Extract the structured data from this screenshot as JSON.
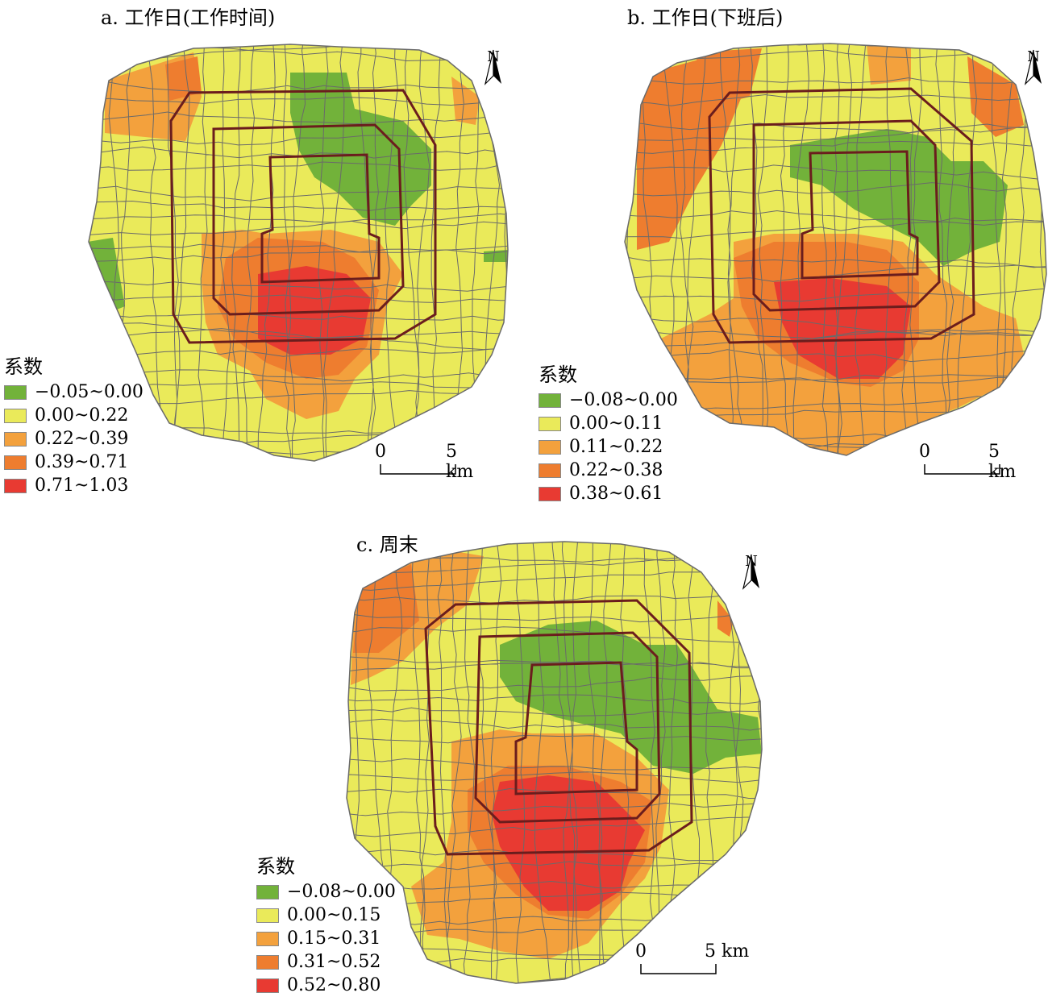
{
  "colors": {
    "green": "#72b23a",
    "yellow": "#eaea5a",
    "light_orange": "#f3a13d",
    "orange": "#ee7d2f",
    "red": "#e83a32",
    "grid_line": "#6a6a6a",
    "ring_road": "#6b1d1d"
  },
  "panels": [
    {
      "title": "a. 工作日(工作时间)",
      "legend_title": "系数",
      "legend": [
        {
          "label": "−0.05~0.00",
          "color": "#72b23a"
        },
        {
          "label": "0.00~0.22",
          "color": "#eaea5a"
        },
        {
          "label": "0.22~0.39",
          "color": "#f3a13d"
        },
        {
          "label": "0.39~0.71",
          "color": "#ee7d2f"
        },
        {
          "label": "0.71~1.03",
          "color": "#e83a32"
        }
      ]
    },
    {
      "title": "b. 工作日(下班后)",
      "legend_title": "系数",
      "legend": [
        {
          "label": "−0.08~0.00",
          "color": "#72b23a"
        },
        {
          "label": "0.00~0.11",
          "color": "#eaea5a"
        },
        {
          "label": "0.11~0.22",
          "color": "#f3a13d"
        },
        {
          "label": "0.22~0.38",
          "color": "#ee7d2f"
        },
        {
          "label": "0.38~0.61",
          "color": "#e83a32"
        }
      ]
    },
    {
      "title": "c. 周末",
      "legend_title": "系数",
      "legend": [
        {
          "label": "−0.08~0.00",
          "color": "#72b23a"
        },
        {
          "label": "0.00~0.15",
          "color": "#eaea5a"
        },
        {
          "label": "0.15~0.31",
          "color": "#f3a13d"
        },
        {
          "label": "0.31~0.52",
          "color": "#ee7d2f"
        },
        {
          "label": "0.52~0.80",
          "color": "#e83a32"
        }
      ]
    }
  ],
  "scale_bar": {
    "start": "0",
    "end": "5 km"
  },
  "north_label": "N"
}
